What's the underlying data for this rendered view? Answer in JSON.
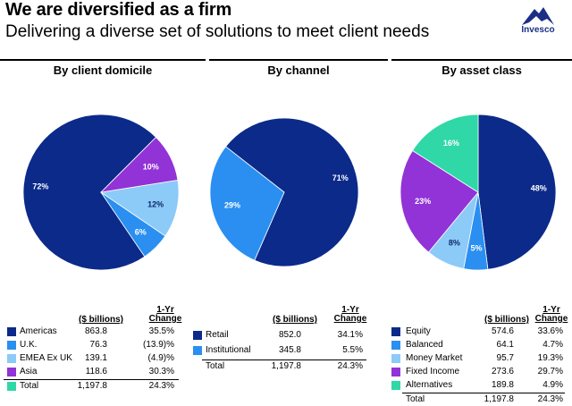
{
  "header": {
    "title": "We are diversified as a firm",
    "subtitle": "Delivering a diverse set of solutions to meet client needs",
    "logo_text": "Invesco"
  },
  "colors": {
    "navy": "#0b2a8a",
    "blue": "#2a8ff0",
    "light_blue": "#8ccaf8",
    "purple": "#9133d6",
    "teal": "#2fd8a6"
  },
  "chart_data": [
    {
      "type": "pie",
      "title": "By client domicile",
      "unit_header": "($ billions)",
      "change_header": [
        "1-Yr",
        "Change"
      ],
      "slices": [
        {
          "label": "Americas",
          "pct": 72,
          "pct_text": "72%",
          "value": "863.8",
          "change": "35.5%",
          "color": "#0b2a8a"
        },
        {
          "label": "U.K.",
          "pct": 6,
          "pct_text": "6%",
          "value": "76.3",
          "change": "(13.9)%",
          "color": "#2a8ff0"
        },
        {
          "label": "EMEA Ex UK",
          "pct": 12,
          "pct_text": "12%",
          "value": "139.1",
          "change": "(4.9)%",
          "color": "#8ccaf8"
        },
        {
          "label": "Asia",
          "pct": 10,
          "pct_text": "10%",
          "value": "118.6",
          "change": "30.3%",
          "color": "#9133d6"
        }
      ],
      "total": {
        "label": "Total",
        "value": "1,197.8",
        "change": "24.3%",
        "color": "#2fd8a6"
      }
    },
    {
      "type": "pie",
      "title": "By channel",
      "unit_header": "($ billions)",
      "change_header": [
        "1-Yr",
        "Change"
      ],
      "slices": [
        {
          "label": "Retail",
          "pct": 71,
          "pct_text": "71%",
          "value": "852.0",
          "change": "34.1%",
          "color": "#0b2a8a"
        },
        {
          "label": "Institutional",
          "pct": 29,
          "pct_text": "29%",
          "value": "345.8",
          "change": "5.5%",
          "color": "#2a8ff0"
        }
      ],
      "total": {
        "label": "Total",
        "value": "1,197.8",
        "change": "24.3%"
      }
    },
    {
      "type": "pie",
      "title": "By asset class",
      "unit_header": "($ billions)",
      "change_header": [
        "1-Yr",
        "Change"
      ],
      "slices": [
        {
          "label": "Equity",
          "pct": 48,
          "pct_text": "48%",
          "value": "574.6",
          "change": "33.6%",
          "color": "#0b2a8a"
        },
        {
          "label": "Balanced",
          "pct": 5,
          "pct_text": "5%",
          "value": "64.1",
          "change": "4.7%",
          "color": "#2a8ff0"
        },
        {
          "label": "Money Market",
          "pct": 8,
          "pct_text": "8%",
          "value": "95.7",
          "change": "19.3%",
          "color": "#8ccaf8"
        },
        {
          "label": "Fixed Income",
          "pct": 23,
          "pct_text": "23%",
          "value": "273.6",
          "change": "29.7%",
          "color": "#9133d6"
        },
        {
          "label": "Alternatives",
          "pct": 16,
          "pct_text": "16%",
          "value": "189.8",
          "change": "4.9%",
          "color": "#2fd8a6"
        }
      ],
      "total": {
        "label": "Total",
        "value": "1,197.8",
        "change": "24.3%"
      }
    }
  ]
}
